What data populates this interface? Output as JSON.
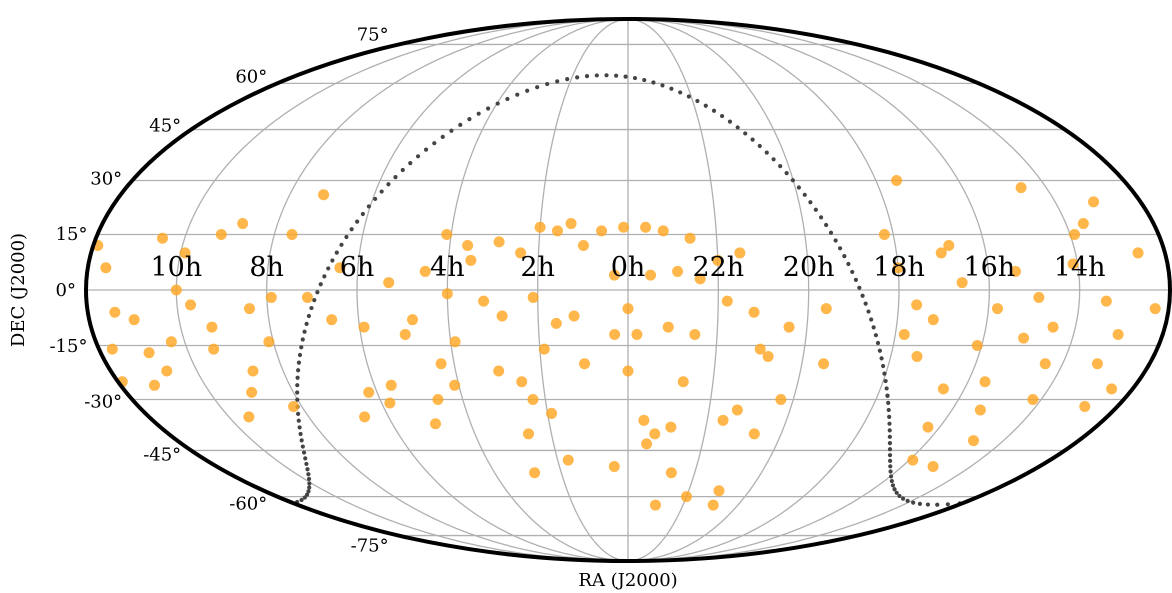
{
  "chart_data": {
    "type": "scatter",
    "projection": "mollweide",
    "xlabel": "RA (J2000)",
    "ylabel": "DEC (J2000)",
    "xlim": [
      0,
      24
    ],
    "ylim": [
      -90,
      90
    ],
    "xticks": [
      {
        "value": 10,
        "label": "10h"
      },
      {
        "value": 8,
        "label": "8h"
      },
      {
        "value": 6,
        "label": "6h"
      },
      {
        "value": 4,
        "label": "4h"
      },
      {
        "value": 2,
        "label": "2h"
      },
      {
        "value": 0,
        "label": "0h"
      },
      {
        "value": 22,
        "label": "22h"
      },
      {
        "value": 20,
        "label": "20h"
      },
      {
        "value": 18,
        "label": "18h"
      },
      {
        "value": 16,
        "label": "16h"
      },
      {
        "value": 14,
        "label": "14h"
      }
    ],
    "yticks": [
      {
        "value": -75,
        "label": "-75°"
      },
      {
        "value": -60,
        "label": "-60°"
      },
      {
        "value": -45,
        "label": "-45°"
      },
      {
        "value": -30,
        "label": "-30°"
      },
      {
        "value": -15,
        "label": "-15°"
      },
      {
        "value": 0,
        "label": "0°"
      },
      {
        "value": 15,
        "label": "15°"
      },
      {
        "value": 30,
        "label": "30°"
      },
      {
        "value": 45,
        "label": "45°"
      },
      {
        "value": 60,
        "label": "60°"
      },
      {
        "value": 75,
        "label": "75°"
      }
    ],
    "grid": true,
    "galactic_plane": true,
    "color": "#ffa51f",
    "x": [
      0.1,
      23.6,
      0.6,
      23.2,
      22.6,
      1.3,
      1.6,
      0.3,
      23.5,
      22.9,
      22.4,
      0.0,
      23.8,
      0.3,
      1.2,
      1.6,
      2.1,
      1.9,
      1.0,
      0.0,
      23.1,
      22.5,
      22.7,
      23.6,
      23.3,
      22.9,
      23.5,
      22.7,
      0.4,
      1.7,
      2.8,
      2.6,
      2.3,
      1.9,
      3.0,
      2.5,
      2.8,
      3.2,
      3.5,
      2.4,
      2.9,
      2.0,
      1.0,
      22.0,
      21.5,
      21.8,
      21.2,
      21.0,
      20.8,
      21.3,
      21.6,
      20.7,
      20.4,
      21.0,
      22.0,
      23.0,
      20.9,
      20.3,
      19.5,
      19.6,
      3.6,
      4.1,
      4.5,
      4.0,
      3.9,
      4.3,
      4.6,
      4.9,
      4.1,
      4.8,
      5.0,
      5.6,
      5.8,
      6.2,
      6.6,
      5.3,
      5.9,
      6.4,
      7.9,
      8.4,
      8.1,
      8.7,
      9.0,
      8.2,
      9.5,
      9.3,
      9.7,
      10.0,
      9.9,
      10.5,
      10.3,
      10.7,
      11.2,
      11.0,
      11.4,
      11.6,
      11.9,
      8.8,
      9.2,
      7.6,
      7.2,
      9.4,
      10.9,
      11.7,
      11.9,
      6.6,
      7.1,
      12.5,
      12.3,
      12.6,
      13.0,
      13.2,
      13.4,
      13.6,
      13.9,
      14.1,
      14.2,
      14.4,
      14.5,
      14.6,
      14.9,
      15.1,
      15.3,
      15.4,
      15.6,
      15.8,
      16.1,
      16.3,
      16.5,
      16.6,
      16.8,
      17.0,
      17.2,
      17.4,
      17.5,
      17.6,
      17.8,
      18.2,
      18.0,
      14.8,
      15.9,
      15.1,
      13.1,
      12.8
    ],
    "values": [
      17,
      17,
      16,
      16,
      14,
      18,
      16,
      4,
      4,
      5,
      3,
      -5,
      -12,
      -12,
      -7,
      -9,
      -2,
      -16,
      -20,
      -22,
      -10,
      -12,
      -25,
      -36,
      -40,
      -38,
      -43,
      -52,
      -50,
      -48,
      -52,
      -40,
      -30,
      -34,
      -22,
      -25,
      -7,
      -3,
      8,
      10,
      13,
      17,
      12,
      8,
      10,
      -3,
      -6,
      -16,
      -18,
      -33,
      -36,
      -40,
      -10,
      -58,
      -60,
      -63,
      -63,
      -30,
      -20,
      -5,
      12,
      15,
      5,
      -1,
      -14,
      -20,
      -30,
      -37,
      -26,
      -8,
      -12,
      -26,
      -31,
      -28,
      -35,
      2,
      -10,
      6,
      -2,
      -5,
      -14,
      -22,
      -28,
      -32,
      -35,
      -10,
      -4,
      0,
      10,
      14,
      -14,
      -22,
      -26,
      -8,
      -6,
      6,
      12,
      18,
      15,
      15,
      26,
      -16,
      -17,
      -16,
      -25,
      -8,
      -2,
      -27,
      -5,
      10,
      -12,
      -20,
      -3,
      18,
      15,
      7,
      -30,
      -20,
      -10,
      28,
      -2,
      -13,
      -33,
      5,
      -25,
      -5,
      -15,
      -38,
      -27,
      2,
      12,
      10,
      -8,
      -18,
      30,
      -4,
      -12,
      15,
      6,
      -42,
      -48,
      -50,
      24,
      -32
    ]
  }
}
